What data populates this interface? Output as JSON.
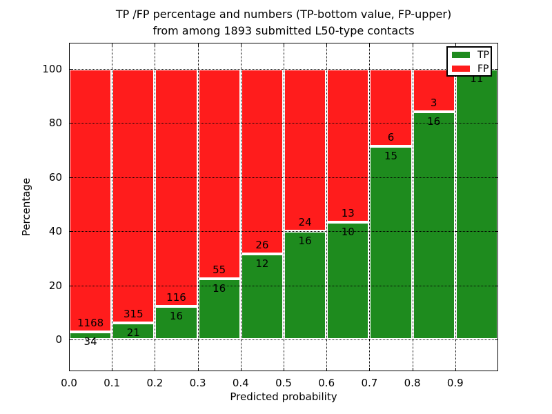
{
  "figure": {
    "title_line1": "TP /FP percentage and numbers (TP-bottom value, FP-upper)",
    "title_line2": "from among 1893 submitted L50-type contacts",
    "xlabel": "Predicted probability",
    "ylabel": "Percentage"
  },
  "colors": {
    "tp": "#1e8b1e",
    "fp": "#ff1c1c",
    "bar_edge": "#ffffff",
    "grid": "#000000",
    "background": "#ffffff"
  },
  "legend": {
    "position": "upper right",
    "items": [
      {
        "label": "TP",
        "color_key": "tp"
      },
      {
        "label": "FP",
        "color_key": "fp"
      }
    ]
  },
  "x_tick_labels": [
    "0.0",
    "0.1",
    "0.2",
    "0.3",
    "0.4",
    "0.5",
    "0.6",
    "0.7",
    "0.8",
    "0.9"
  ],
  "y_tick_labels": [
    "0",
    "20",
    "40",
    "60",
    "80",
    "100"
  ],
  "chart_data": {
    "type": "bar",
    "stacked": true,
    "normalized": "each bin scaled to 100%",
    "title": "TP /FP percentage and numbers (TP-bottom value, FP-upper) from among 1893 submitted L50-type contacts",
    "xlabel": "Predicted probability",
    "ylabel": "Percentage",
    "ylim": [
      0,
      100
    ],
    "xlim": [
      0.0,
      1.0
    ],
    "bin_width": 0.1,
    "categories": [
      "0.0-0.1",
      "0.1-0.2",
      "0.2-0.3",
      "0.3-0.4",
      "0.4-0.5",
      "0.5-0.6",
      "0.6-0.7",
      "0.7-0.8",
      "0.8-0.9",
      "0.9-1.0"
    ],
    "series": [
      {
        "name": "TP",
        "counts": [
          34,
          21,
          16,
          16,
          12,
          16,
          10,
          15,
          16,
          11
        ]
      },
      {
        "name": "FP",
        "counts": [
          1168,
          315,
          116,
          55,
          26,
          24,
          13,
          6,
          3,
          0
        ]
      }
    ],
    "tp_percent": [
      2.83,
      6.25,
      12.12,
      22.54,
      31.58,
      40.0,
      43.48,
      71.43,
      84.21,
      100.0
    ],
    "bar_labels": {
      "fp": [
        "1168",
        "315",
        "116",
        "55",
        "26",
        "24",
        "13",
        "6",
        "3",
        ""
      ],
      "tp": [
        "34",
        "21",
        "16",
        "16",
        "12",
        "16",
        "10",
        "15",
        "16",
        "11"
      ]
    },
    "total_contacts": 1893,
    "grid": "dotted",
    "legend_position": "upper right"
  }
}
